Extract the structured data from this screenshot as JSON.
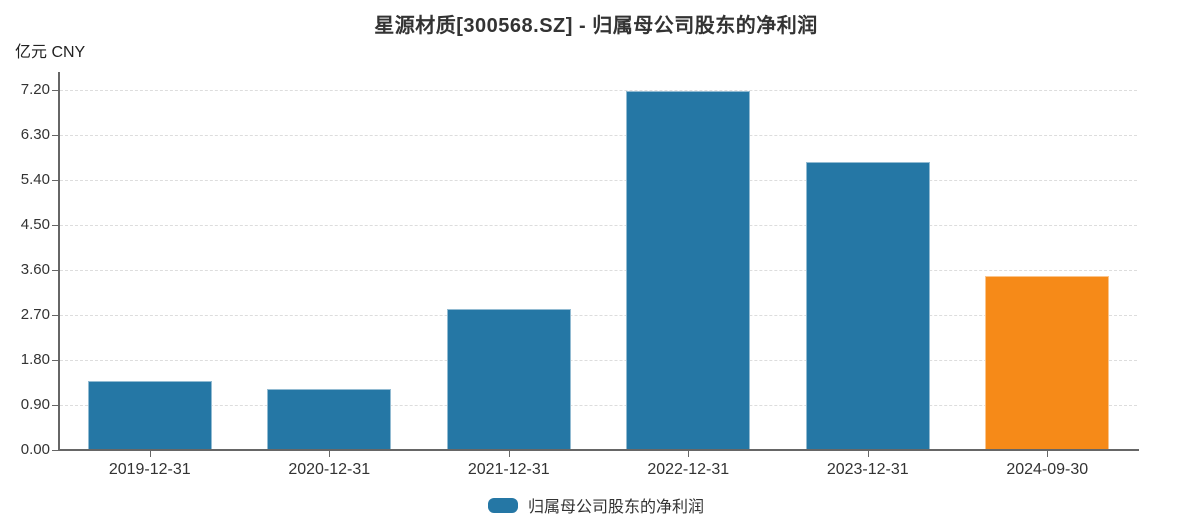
{
  "title": "星源材质[300568.SZ] - 归属母公司股东的净利润",
  "unit_label": "亿元 CNY",
  "legend": {
    "label": "归属母公司股东的净利润",
    "marker_color": "#2577a5"
  },
  "colors": {
    "bar_default": "#2577a5",
    "bar_highlight": "#f68a18",
    "axis": "#666666",
    "gridline": "#dddddd",
    "text": "#333333"
  },
  "chart_data": {
    "type": "bar",
    "title": "星源材质[300568.SZ] - 归属母公司股东的净利润",
    "categories": [
      "2019-12-31",
      "2020-12-31",
      "2021-12-31",
      "2022-12-31",
      "2023-12-31",
      "2024-09-30"
    ],
    "series": [
      {
        "name": "归属母公司股东的净利润",
        "values": [
          1.38,
          1.23,
          2.83,
          7.19,
          5.76,
          3.48
        ],
        "point_colors": [
          "#2577a5",
          "#2577a5",
          "#2577a5",
          "#2577a5",
          "#2577a5",
          "#f68a18"
        ]
      }
    ],
    "xlabel": "",
    "ylabel": "亿元 CNY",
    "ylim": [
      0,
      7.2
    ],
    "ytick_interval": 0.9,
    "ytick_labels": [
      "0.00",
      "0.90",
      "1.80",
      "2.70",
      "3.60",
      "4.50",
      "5.40",
      "6.30",
      "7.20"
    ],
    "grid": true,
    "grid_style": "dashed",
    "legend_position": "bottom"
  }
}
